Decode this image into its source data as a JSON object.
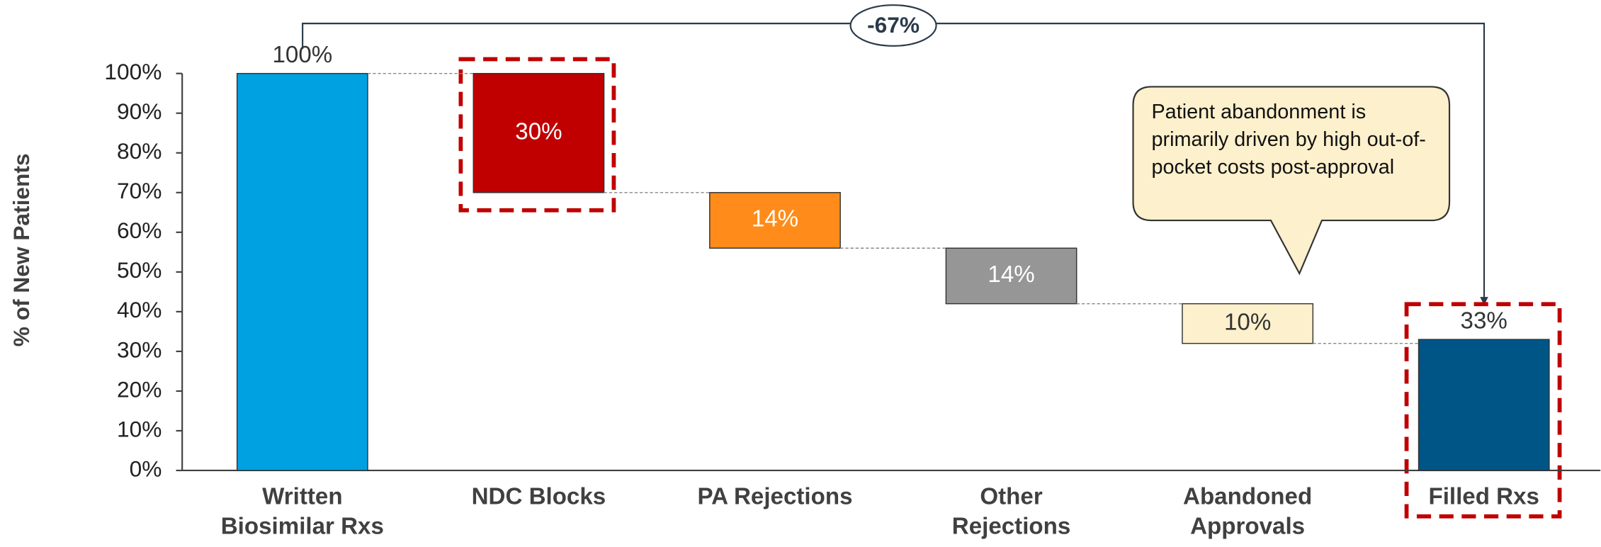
{
  "chart_data": {
    "type": "waterfall",
    "y_label": "% of New Patients",
    "categories": [
      "Written Biosimilar Rxs",
      "NDC Blocks",
      "PA Rejections",
      "Other Rejections",
      "Abandoned Approvals",
      "Filled Rxs"
    ],
    "measures": [
      "total",
      "decrease",
      "decrease",
      "decrease",
      "decrease",
      "total"
    ],
    "values": [
      100,
      30,
      14,
      14,
      10,
      33
    ],
    "value_labels": [
      "100%",
      "30%",
      "14%",
      "14%",
      "10%",
      "33%"
    ],
    "colors": [
      "#00a1e1",
      "#c00000",
      "#ff8c1a",
      "#969696",
      "#fdf0cc",
      "#005587"
    ],
    "ylim": [
      0,
      100
    ],
    "yticks": [
      {
        "value": 0,
        "label": "0%"
      },
      {
        "value": 10,
        "label": "10%"
      },
      {
        "value": 20,
        "label": "20%"
      },
      {
        "value": 30,
        "label": "30%"
      },
      {
        "value": 40,
        "label": "40%"
      },
      {
        "value": 50,
        "label": "50%"
      },
      {
        "value": 60,
        "label": "60%"
      },
      {
        "value": 70,
        "label": "70%"
      },
      {
        "value": 80,
        "label": "80%"
      },
      {
        "value": 90,
        "label": "90%"
      },
      {
        "value": 100,
        "label": "100%"
      }
    ],
    "bracket_label": "-67%",
    "callout": "Patient abandonment is primarily driven by high out-of-pocket costs post-approval"
  }
}
